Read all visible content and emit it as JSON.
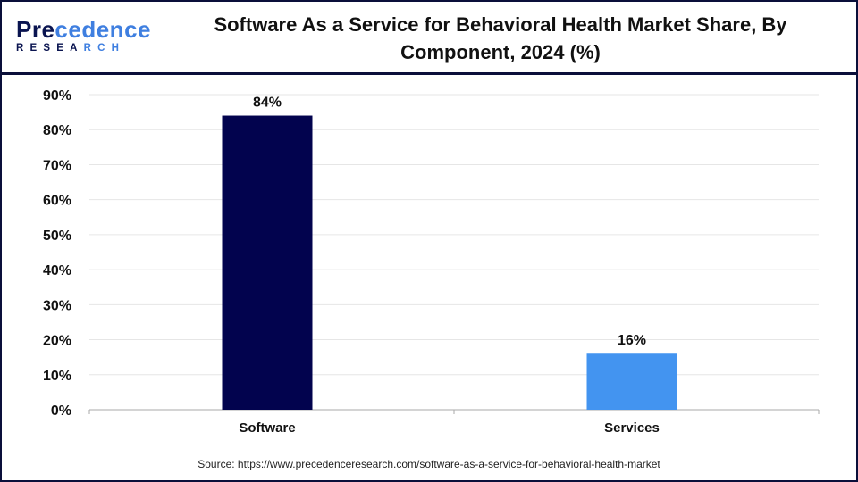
{
  "logo": {
    "text_main": "Precedence",
    "text_sub": "RESEARCH"
  },
  "title": "Software As a Service for Behavioral Health Market Share, By Component, 2024 (%)",
  "source": "Source: https://www.precedenceresearch.com/software-as-a-service-for-behavioral-health-market",
  "chart_data": {
    "type": "bar",
    "title": "Software As a Service for Behavioral Health Market Share, By Component, 2024 (%)",
    "categories": [
      "Software",
      "Services"
    ],
    "values": [
      84,
      16
    ],
    "data_labels": [
      "84%",
      "16%"
    ],
    "colors": [
      "#02034e",
      "#4394f0"
    ],
    "ylim": [
      0,
      90
    ],
    "yticks": [
      "0%",
      "10%",
      "20%",
      "30%",
      "40%",
      "50%",
      "60%",
      "70%",
      "80%",
      "90%"
    ],
    "grid": true,
    "xlabel": "",
    "ylabel": ""
  }
}
